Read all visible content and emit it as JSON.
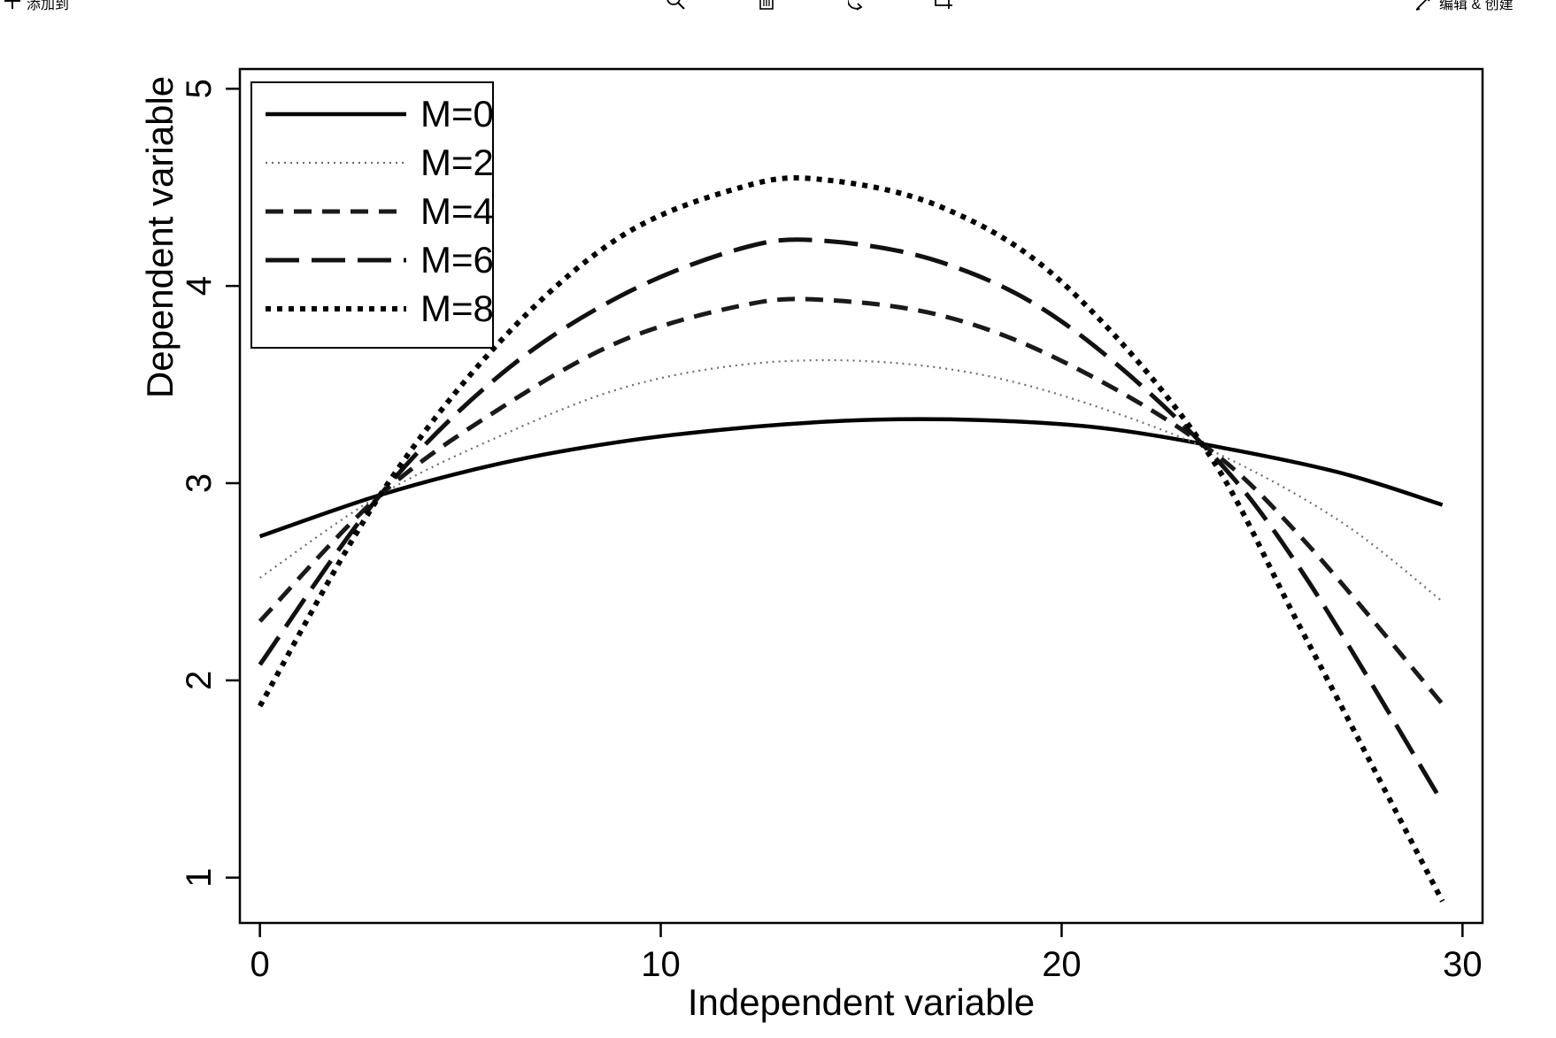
{
  "toolbar": {
    "add_label": "添加到",
    "add_icon": "plus-icon",
    "zoom_icon": "zoom-icon",
    "delete_icon": "trash-icon",
    "rotate_icon": "rotate-icon",
    "crop_icon": "crop-icon",
    "edit_label": "编辑 & 创建",
    "edit_icon": "edit-brush-icon"
  },
  "chart_data": {
    "type": "line",
    "title": "",
    "xlabel": "Independent variable",
    "ylabel": "Dependent variable",
    "xlim": [
      -0.5,
      30.5
    ],
    "ylim": [
      0.77,
      5.1
    ],
    "xticks": [
      0,
      10,
      20,
      30
    ],
    "yticks": [
      1,
      2,
      3,
      4,
      5
    ],
    "grid": false,
    "legend_position": "top-left",
    "series": [
      {
        "name": "M=0",
        "style": "solid",
        "stroke": "#000000",
        "x": [
          0,
          3,
          6,
          9,
          12,
          15,
          18,
          21,
          24,
          27,
          29.5
        ],
        "y": [
          2.73,
          2.94,
          3.1,
          3.21,
          3.28,
          3.32,
          3.32,
          3.28,
          3.18,
          3.05,
          2.89
        ]
      },
      {
        "name": "M=2",
        "style": "dotted-fine",
        "stroke": "#6e6e6e",
        "x": [
          0,
          3,
          6,
          9,
          12,
          15,
          18,
          21,
          24,
          27,
          29.5
        ],
        "y": [
          2.52,
          2.94,
          3.24,
          3.48,
          3.6,
          3.62,
          3.55,
          3.38,
          3.14,
          2.8,
          2.4
        ]
      },
      {
        "name": "M=4",
        "style": "dashed",
        "stroke": "#1a1a1a",
        "x": [
          0,
          3,
          6,
          9,
          12,
          14,
          17,
          20,
          23.5,
          26,
          29.5
        ],
        "y": [
          2.3,
          2.94,
          3.38,
          3.72,
          3.9,
          3.93,
          3.85,
          3.62,
          3.2,
          2.72,
          1.88
        ]
      },
      {
        "name": "M=6",
        "style": "long-dashed",
        "stroke": "#111111",
        "x": [
          0,
          3,
          6,
          9,
          12,
          14,
          17,
          20,
          23.5,
          26,
          29.5
        ],
        "y": [
          2.08,
          2.94,
          3.55,
          3.95,
          4.19,
          4.23,
          4.12,
          3.82,
          3.2,
          2.55,
          1.38
        ]
      },
      {
        "name": "M=8",
        "style": "dotted-heavy",
        "stroke": "#000000",
        "x": [
          0,
          3,
          6,
          9,
          12,
          14,
          17,
          20,
          23.5,
          26,
          29.5
        ],
        "y": [
          1.87,
          2.94,
          3.72,
          4.25,
          4.5,
          4.54,
          4.4,
          4.02,
          3.2,
          2.25,
          0.88
        ]
      }
    ]
  }
}
